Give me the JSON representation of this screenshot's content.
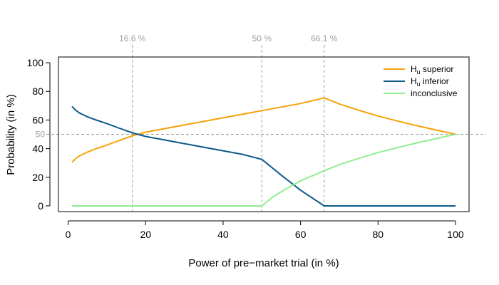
{
  "chart_data": {
    "type": "line",
    "title": "",
    "xlabel": "Power of pre−market trial (in %)",
    "ylabel": "Probability (in %)",
    "xlim": [
      -2.5,
      103.5
    ],
    "ylim": [
      -4,
      104
    ],
    "xticks": [
      0,
      20,
      40,
      60,
      80,
      100
    ],
    "yticks": [
      0,
      20,
      40,
      60,
      80,
      100
    ],
    "grid": false,
    "legend_position": "top-right",
    "reference_lines": {
      "vertical": [
        {
          "x": 16.6,
          "label": "16.6 %"
        },
        {
          "x": 50,
          "label": "50 %"
        },
        {
          "x": 66.1,
          "label": "66.1 %"
        }
      ],
      "horizontal": [
        {
          "y": 50,
          "label": "50"
        }
      ],
      "color": "#9e9e9e"
    },
    "series": [
      {
        "name": "H_u superior",
        "legend_main": "H",
        "legend_sub": "u",
        "legend_rest": " superior",
        "color": "#f5a20a",
        "x": [
          1,
          2,
          3,
          5,
          7,
          10,
          13,
          16.6,
          20,
          25,
          30,
          35,
          40,
          45,
          50,
          55,
          60,
          66.1,
          70,
          75,
          80,
          85,
          90,
          95,
          100
        ],
        "y": [
          30.5,
          33.2,
          35.0,
          37.6,
          39.7,
          42.5,
          45.4,
          49.0,
          51.5,
          54.0,
          56.5,
          59.0,
          61.5,
          64.0,
          66.5,
          69.0,
          71.5,
          75.5,
          71.2,
          66.8,
          62.8,
          59.3,
          56.0,
          53.0,
          50.0
        ]
      },
      {
        "name": "H_u inferior",
        "legend_main": "H",
        "legend_sub": "u",
        "legend_rest": " inferior",
        "color": "#0e5a8a",
        "x": [
          1,
          2,
          3,
          5,
          7,
          10,
          13,
          16.6,
          20,
          25,
          30,
          35,
          40,
          45,
          50,
          55,
          60,
          66.1,
          70,
          75,
          80,
          85,
          90,
          95,
          100
        ],
        "y": [
          69.5,
          66.6,
          64.8,
          62.2,
          60.2,
          57.5,
          54.5,
          51.0,
          48.5,
          46.0,
          43.5,
          41.0,
          38.5,
          36.0,
          32.5,
          21.5,
          11.0,
          0,
          0,
          0,
          0,
          0,
          0,
          0,
          0
        ]
      },
      {
        "name": "inconclusive",
        "legend_main": "inconclusive",
        "legend_sub": "",
        "legend_rest": "",
        "color": "#90ee90",
        "x": [
          1,
          10,
          20,
          30,
          40,
          50,
          53,
          56,
          60,
          63,
          66.1,
          70,
          75,
          80,
          85,
          90,
          95,
          100
        ],
        "y": [
          0,
          0,
          0,
          0,
          0,
          0,
          6.5,
          11.5,
          17.5,
          21.0,
          24.5,
          28.8,
          33.2,
          37.2,
          40.7,
          44.0,
          47.0,
          50.0
        ]
      }
    ]
  }
}
